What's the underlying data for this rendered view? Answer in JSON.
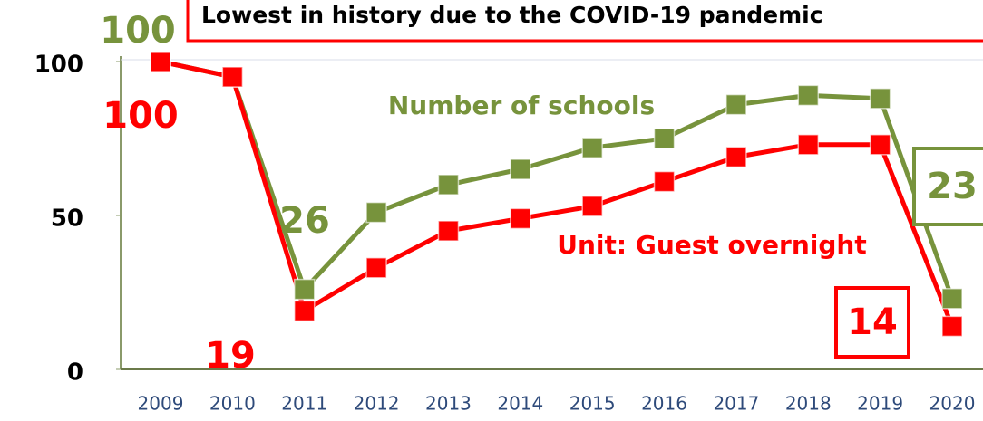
{
  "chart_data": {
    "type": "line",
    "title": "Lowest in history due to the COVID-19 pandemic",
    "categories": [
      "2009",
      "2010",
      "2011",
      "2012",
      "2013",
      "2014",
      "2015",
      "2016",
      "2017",
      "2018",
      "2019",
      "2020"
    ],
    "series": [
      {
        "name": "Number of schools",
        "color": "#77933c",
        "values": [
          100,
          95,
          26,
          51,
          60,
          65,
          72,
          75,
          86,
          89,
          88,
          23
        ]
      },
      {
        "name": "Unit: Guest overnight",
        "color": "#ff0000",
        "values": [
          100,
          95,
          19,
          33,
          45,
          49,
          53,
          61,
          69,
          73,
          73,
          14
        ]
      }
    ],
    "ylim": [
      0,
      100
    ],
    "yticks": [
      0,
      50,
      100
    ]
  }
}
